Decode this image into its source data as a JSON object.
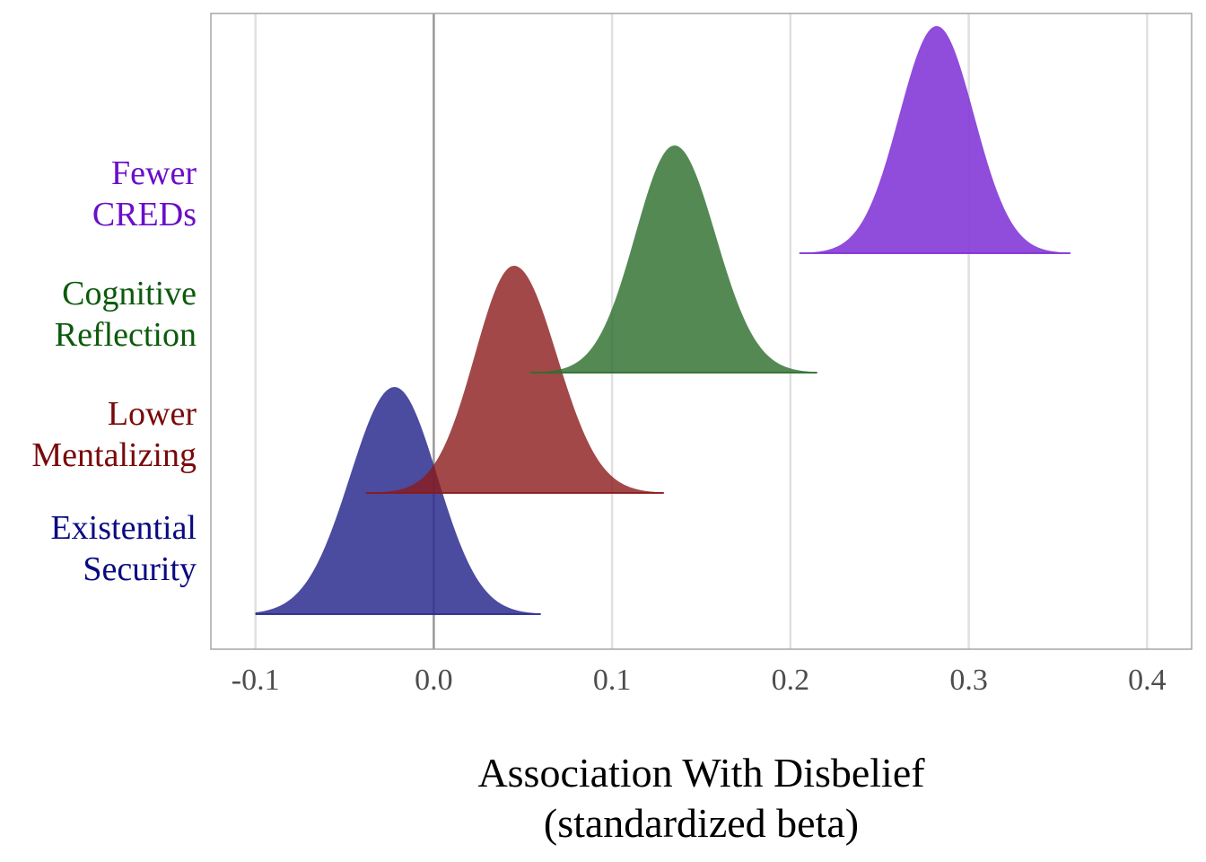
{
  "chart_data": {
    "type": "ridgeline",
    "title": "",
    "xlabel": [
      "Association With Disbelief",
      "(standardized beta)"
    ],
    "ylabel": "",
    "xlim": [
      -0.125,
      0.425
    ],
    "x_ticks": [
      -0.1,
      0.0,
      0.1,
      0.2,
      0.3,
      0.4
    ],
    "x_tick_labels": [
      "-0.1",
      "0.0",
      "0.1",
      "0.2",
      "0.3",
      "0.4"
    ],
    "reference_line": 0.0,
    "grid": "vertical major",
    "legend": "none",
    "series": [
      {
        "label_lines": [
          "Existential",
          "Security"
        ],
        "color": "#0a0a80",
        "fill": "#2b2b8f",
        "opacity": 0.85,
        "mode": -0.022,
        "sd_left": 0.025,
        "sd_right": 0.024,
        "range": [
          -0.1,
          0.06
        ]
      },
      {
        "label_lines": [
          "Lower",
          "Mentalizing"
        ],
        "color": "#7a0a0a",
        "fill": "#8b1a1a",
        "opacity": 0.8,
        "mode": 0.045,
        "sd_left": 0.022,
        "sd_right": 0.024,
        "range": [
          -0.038,
          0.129
        ]
      },
      {
        "label_lines": [
          "Cognitive",
          "Reflection"
        ],
        "color": "#0c5a0c",
        "fill": "#2e6f2e",
        "opacity": 0.82,
        "mode": 0.135,
        "sd_left": 0.022,
        "sd_right": 0.023,
        "range": [
          0.054,
          0.215
        ]
      },
      {
        "label_lines": [
          "Fewer",
          "CREDs"
        ],
        "color": "#6a0ec8",
        "fill": "#8133d6",
        "opacity": 0.88,
        "mode": 0.282,
        "sd_left": 0.021,
        "sd_right": 0.021,
        "range": [
          0.205,
          0.357
        ]
      }
    ]
  }
}
